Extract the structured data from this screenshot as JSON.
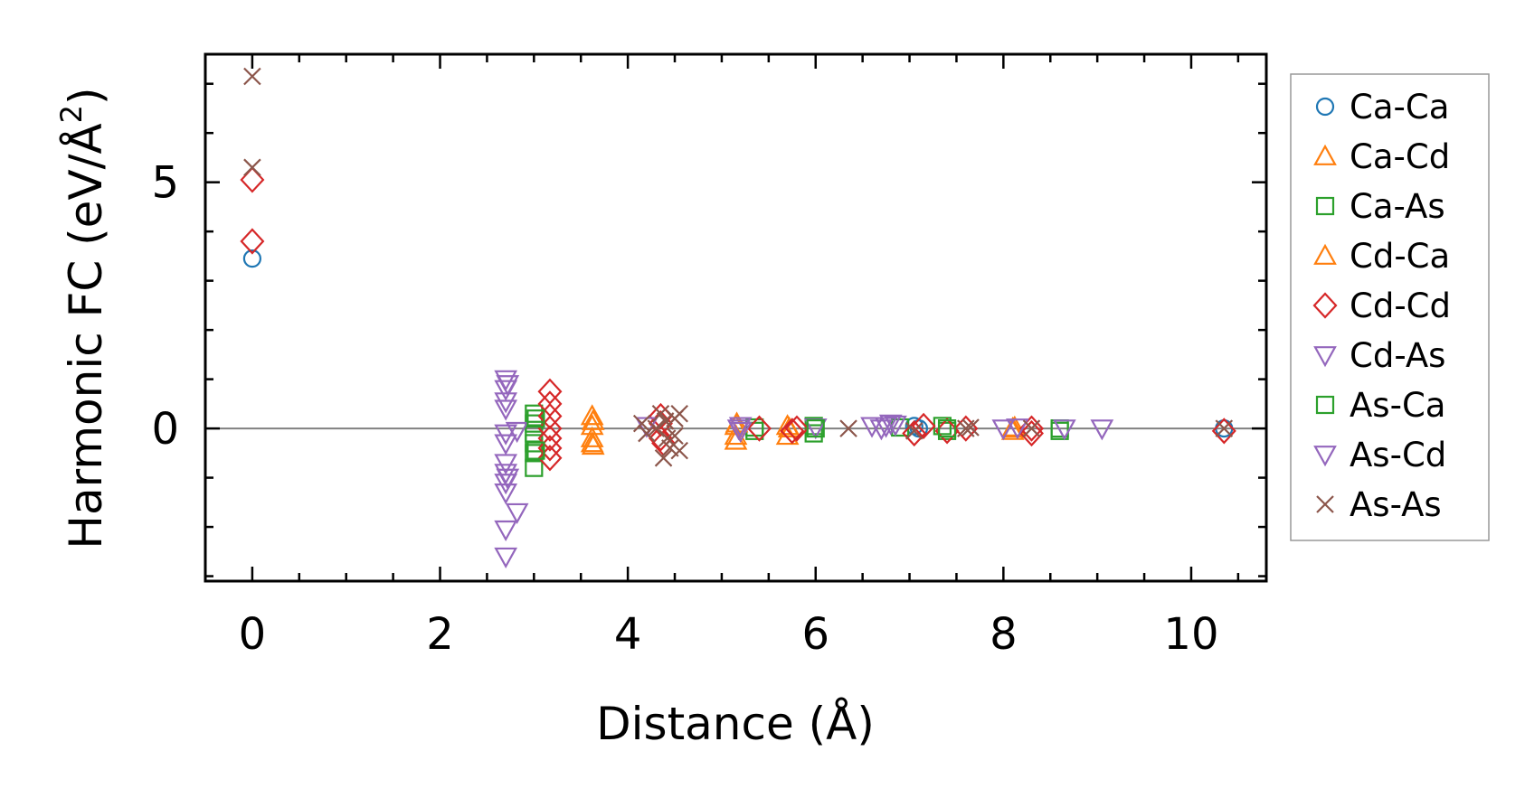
{
  "chart_data": {
    "type": "scatter",
    "title": "",
    "xlabel": "Distance (Å)",
    "ylabel_main": "Harmonic FC (eV/Å",
    "ylabel_sup": "2",
    "ylabel_close": ")",
    "xlim": [
      -0.5,
      10.8
    ],
    "ylim": [
      -3.1,
      7.6
    ],
    "x_major_ticks": [
      0,
      2,
      4,
      6,
      8,
      10
    ],
    "x_tick_labels": [
      "0",
      "2",
      "4",
      "6",
      "8",
      "10"
    ],
    "x_minor_step": 0.5,
    "y_major_ticks": [
      0,
      5
    ],
    "y_tick_labels": [
      "0",
      "5"
    ],
    "y_minor_step": 1,
    "reference_line_y": 0,
    "legend_position": "right-outside-top",
    "series": [
      {
        "name": "Ca-Ca",
        "marker": "circle",
        "color": "#1f77b4",
        "points": [
          [
            0,
            3.45
          ],
          [
            7.05,
            0.05
          ],
          [
            7.1,
            0.0
          ],
          [
            10.35,
            0.0
          ]
        ]
      },
      {
        "name": "Ca-Cd",
        "marker": "triangle-up",
        "color": "#ff7f0e",
        "points": [
          [
            3.62,
            0.25
          ],
          [
            3.62,
            0.05
          ],
          [
            3.62,
            -0.2
          ],
          [
            3.62,
            -0.3
          ],
          [
            5.15,
            -0.15
          ],
          [
            5.15,
            -0.25
          ],
          [
            5.15,
            0.05
          ],
          [
            5.7,
            0.05
          ],
          [
            5.7,
            -0.15
          ],
          [
            8.1,
            -0.05
          ],
          [
            8.1,
            0.0
          ]
        ]
      },
      {
        "name": "Ca-As",
        "marker": "square",
        "color": "#2ca02c",
        "points": [
          [
            3.0,
            0.3
          ],
          [
            3.0,
            0.1
          ],
          [
            3.0,
            -0.1
          ],
          [
            3.0,
            -0.3
          ],
          [
            3.0,
            -0.5
          ],
          [
            3.0,
            -0.8
          ],
          [
            5.35,
            -0.05
          ],
          [
            5.35,
            0.02
          ],
          [
            5.98,
            0.05
          ],
          [
            5.98,
            -0.1
          ],
          [
            6.9,
            0.02
          ],
          [
            7.35,
            0.05
          ],
          [
            7.4,
            -0.05
          ],
          [
            8.6,
            0.0
          ],
          [
            8.6,
            -0.05
          ]
        ]
      },
      {
        "name": "Cd-Ca",
        "marker": "triangle-up",
        "color": "#ff7f0e",
        "points": [
          [
            3.63,
            0.15
          ],
          [
            3.63,
            -0.35
          ],
          [
            5.16,
            0.1
          ],
          [
            5.72,
            0.0
          ],
          [
            8.12,
            0.02
          ]
        ]
      },
      {
        "name": "Cd-Cd",
        "marker": "diamond",
        "color": "#d62728",
        "points": [
          [
            0,
            5.05
          ],
          [
            0,
            3.8
          ],
          [
            3.17,
            0.75
          ],
          [
            3.17,
            0.5
          ],
          [
            3.17,
            0.25
          ],
          [
            3.17,
            0.0
          ],
          [
            3.17,
            -0.2
          ],
          [
            3.17,
            -0.4
          ],
          [
            3.17,
            -0.6
          ],
          [
            4.35,
            0.25
          ],
          [
            4.35,
            0.1
          ],
          [
            4.35,
            -0.2
          ],
          [
            4.38,
            -0.3
          ],
          [
            5.4,
            0.0
          ],
          [
            5.8,
            0.0
          ],
          [
            5.75,
            -0.05
          ],
          [
            7.05,
            -0.1
          ],
          [
            7.15,
            0.05
          ],
          [
            7.4,
            -0.05
          ],
          [
            7.6,
            0.0
          ],
          [
            8.3,
            0.0
          ],
          [
            8.3,
            -0.1
          ],
          [
            10.35,
            -0.05
          ]
        ]
      },
      {
        "name": "Cd-As",
        "marker": "triangle-down",
        "color": "#9467bd",
        "points": [
          [
            2.7,
            1.0
          ],
          [
            2.7,
            0.8
          ],
          [
            2.7,
            0.55
          ],
          [
            2.7,
            0.4
          ],
          [
            2.7,
            -0.1
          ],
          [
            2.7,
            -0.3
          ],
          [
            2.7,
            -0.7
          ],
          [
            2.7,
            -0.9
          ],
          [
            2.7,
            -1.1
          ],
          [
            2.7,
            -1.3
          ],
          [
            2.7,
            -2.05
          ],
          [
            2.7,
            -2.6
          ],
          [
            2.82,
            -1.7
          ],
          [
            2.82,
            -0.05
          ],
          [
            4.2,
            0.05
          ],
          [
            5.18,
            0.0
          ],
          [
            5.2,
            -0.05
          ],
          [
            6.0,
            0.02
          ],
          [
            6.6,
            0.05
          ],
          [
            6.75,
            0.05
          ],
          [
            6.8,
            0.1
          ],
          [
            8.0,
            0.0
          ],
          [
            8.15,
            0.02
          ],
          [
            8.65,
            0.0
          ],
          [
            9.05,
            0.0
          ]
        ]
      },
      {
        "name": "As-Ca",
        "marker": "square",
        "color": "#2ca02c",
        "points": [
          [
            3.02,
            0.2
          ],
          [
            3.02,
            -0.45
          ],
          [
            6.0,
            0.0
          ],
          [
            7.4,
            0.0
          ]
        ]
      },
      {
        "name": "As-Cd",
        "marker": "triangle-down",
        "color": "#9467bd",
        "points": [
          [
            2.72,
            0.9
          ],
          [
            2.72,
            -1.0
          ],
          [
            5.2,
            0.05
          ],
          [
            6.7,
            0.0
          ],
          [
            6.85,
            0.08
          ]
        ]
      },
      {
        "name": "As-As",
        "marker": "x",
        "color": "#8c564b",
        "points": [
          [
            0,
            7.15
          ],
          [
            0,
            5.3
          ],
          [
            4.15,
            0.1
          ],
          [
            4.2,
            -0.1
          ],
          [
            4.3,
            0.0
          ],
          [
            4.35,
            0.3
          ],
          [
            4.38,
            -0.6
          ],
          [
            4.4,
            0.15
          ],
          [
            4.42,
            -0.2
          ],
          [
            4.45,
            -0.4
          ],
          [
            4.5,
            0.2
          ],
          [
            4.5,
            -0.15
          ],
          [
            4.55,
            0.3
          ],
          [
            4.55,
            -0.45
          ],
          [
            6.35,
            0.0
          ],
          [
            7.05,
            -0.05
          ],
          [
            7.6,
            0.0
          ],
          [
            7.65,
            0.02
          ],
          [
            8.3,
            0.0
          ],
          [
            10.35,
            0.0
          ]
        ]
      }
    ]
  }
}
